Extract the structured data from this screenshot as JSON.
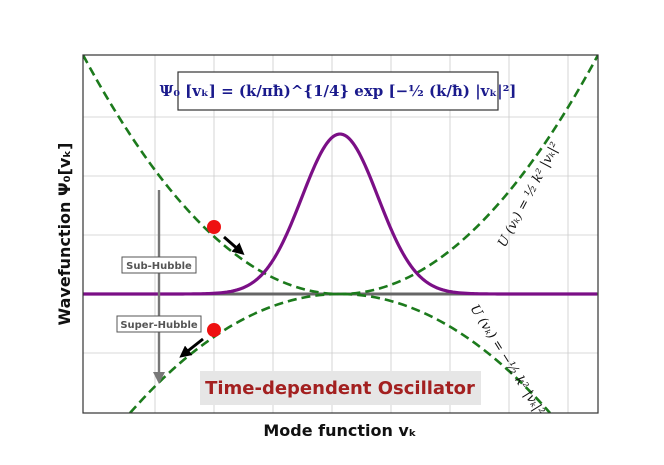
{
  "figure": {
    "wavefunction_formula": "Ψ₀ [vₖ] = (k/πħ)^{1/4} exp [−½ (k/ħ) |vₖ|²]",
    "potential_upper": "U (vₖ) = ½ k² |vₖ|²",
    "potential_lower": "U (vₖ) = −½ k² |vₖ|²",
    "sub_hubble_label": "Sub-Hubble",
    "super_hubble_label": "Super-Hubble",
    "title": "Time-dependent Oscillator",
    "xlabel": "Mode function vₖ",
    "ylabel": "Wavefunction Ψ₀[vₖ]"
  },
  "colors": {
    "wavefunction": "#7b0f86",
    "potential": "#1c7a1c",
    "marker": "#ee1111",
    "title": "#a32020",
    "formula": "#1a1a8c"
  }
}
